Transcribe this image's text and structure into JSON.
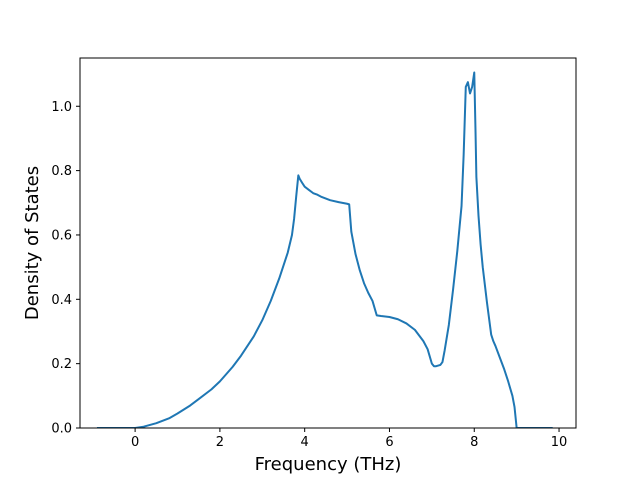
{
  "chart_data": {
    "type": "line",
    "title": "",
    "xlabel": "Frequency (THz)",
    "ylabel": "Density of States",
    "xlim": [
      -1.3,
      10.4
    ],
    "ylim": [
      0.0,
      1.15
    ],
    "xticks": [
      0,
      2,
      4,
      6,
      8,
      10
    ],
    "xtick_labels": [
      "0",
      "2",
      "4",
      "6",
      "8",
      "10"
    ],
    "yticks": [
      0.0,
      0.2,
      0.4,
      0.6,
      0.8,
      1.0
    ],
    "ytick_labels": [
      "0.0",
      "0.2",
      "0.4",
      "0.6",
      "0.8",
      "1.0"
    ],
    "grid": false,
    "line_color": "#1f77b4",
    "series": [
      {
        "x": [
          -0.9,
          -0.5,
          0.0,
          0.2,
          0.5,
          0.8,
          1.0,
          1.3,
          1.5,
          1.8,
          2.0,
          2.3,
          2.5,
          2.8,
          3.0,
          3.2,
          3.4,
          3.6,
          3.7,
          3.75,
          3.8,
          3.85,
          3.88,
          3.95,
          4.0,
          4.1,
          4.2,
          4.3,
          4.4,
          4.5,
          4.6,
          4.8,
          5.0,
          5.05,
          5.1,
          5.2,
          5.3,
          5.4,
          5.5,
          5.6,
          5.7,
          5.8,
          6.0,
          6.2,
          6.4,
          6.6,
          6.8,
          6.9,
          7.0,
          7.05,
          7.1,
          7.2,
          7.25,
          7.3,
          7.4,
          7.5,
          7.6,
          7.7,
          7.75,
          7.8,
          7.85,
          7.9,
          7.95,
          8.0,
          8.03,
          8.05,
          8.1,
          8.15,
          8.2,
          8.3,
          8.4,
          8.45,
          8.5,
          8.6,
          8.7,
          8.8,
          8.9,
          8.95,
          9.0,
          9.5,
          9.85
        ],
        "y": [
          0.0,
          0.0,
          0.0,
          0.004,
          0.015,
          0.03,
          0.045,
          0.07,
          0.09,
          0.12,
          0.145,
          0.19,
          0.225,
          0.285,
          0.335,
          0.395,
          0.465,
          0.545,
          0.6,
          0.65,
          0.72,
          0.785,
          0.775,
          0.76,
          0.75,
          0.74,
          0.73,
          0.725,
          0.718,
          0.713,
          0.708,
          0.702,
          0.697,
          0.695,
          0.61,
          0.54,
          0.49,
          0.45,
          0.42,
          0.395,
          0.35,
          0.348,
          0.345,
          0.338,
          0.325,
          0.305,
          0.27,
          0.245,
          0.2,
          0.192,
          0.192,
          0.196,
          0.205,
          0.24,
          0.32,
          0.43,
          0.55,
          0.69,
          0.85,
          1.06,
          1.075,
          1.04,
          1.06,
          1.105,
          0.92,
          0.78,
          0.66,
          0.57,
          0.5,
          0.39,
          0.29,
          0.27,
          0.255,
          0.22,
          0.185,
          0.145,
          0.1,
          0.065,
          0.0,
          0.0,
          0.0
        ]
      }
    ]
  }
}
